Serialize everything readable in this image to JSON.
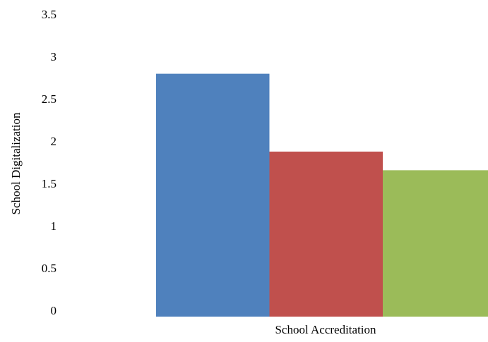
{
  "chart_data": {
    "type": "bar",
    "categories": [
      "School Accreditation"
    ],
    "series": [
      {
        "values": [
          2.87
        ],
        "color": "#4f81bd"
      },
      {
        "values": [
          1.95
        ],
        "color": "#c0504d"
      },
      {
        "values": [
          1.73
        ],
        "color": "#9bbb59"
      }
    ],
    "title": "",
    "xlabel": "School Accreditation",
    "ylabel": "School Digitalization",
    "ylim": [
      0,
      3.5
    ],
    "yticks": [
      "0",
      "0.5",
      "1",
      "1.5",
      "2",
      "2.5",
      "3",
      "3.5"
    ],
    "grid": false,
    "legend": "none"
  }
}
